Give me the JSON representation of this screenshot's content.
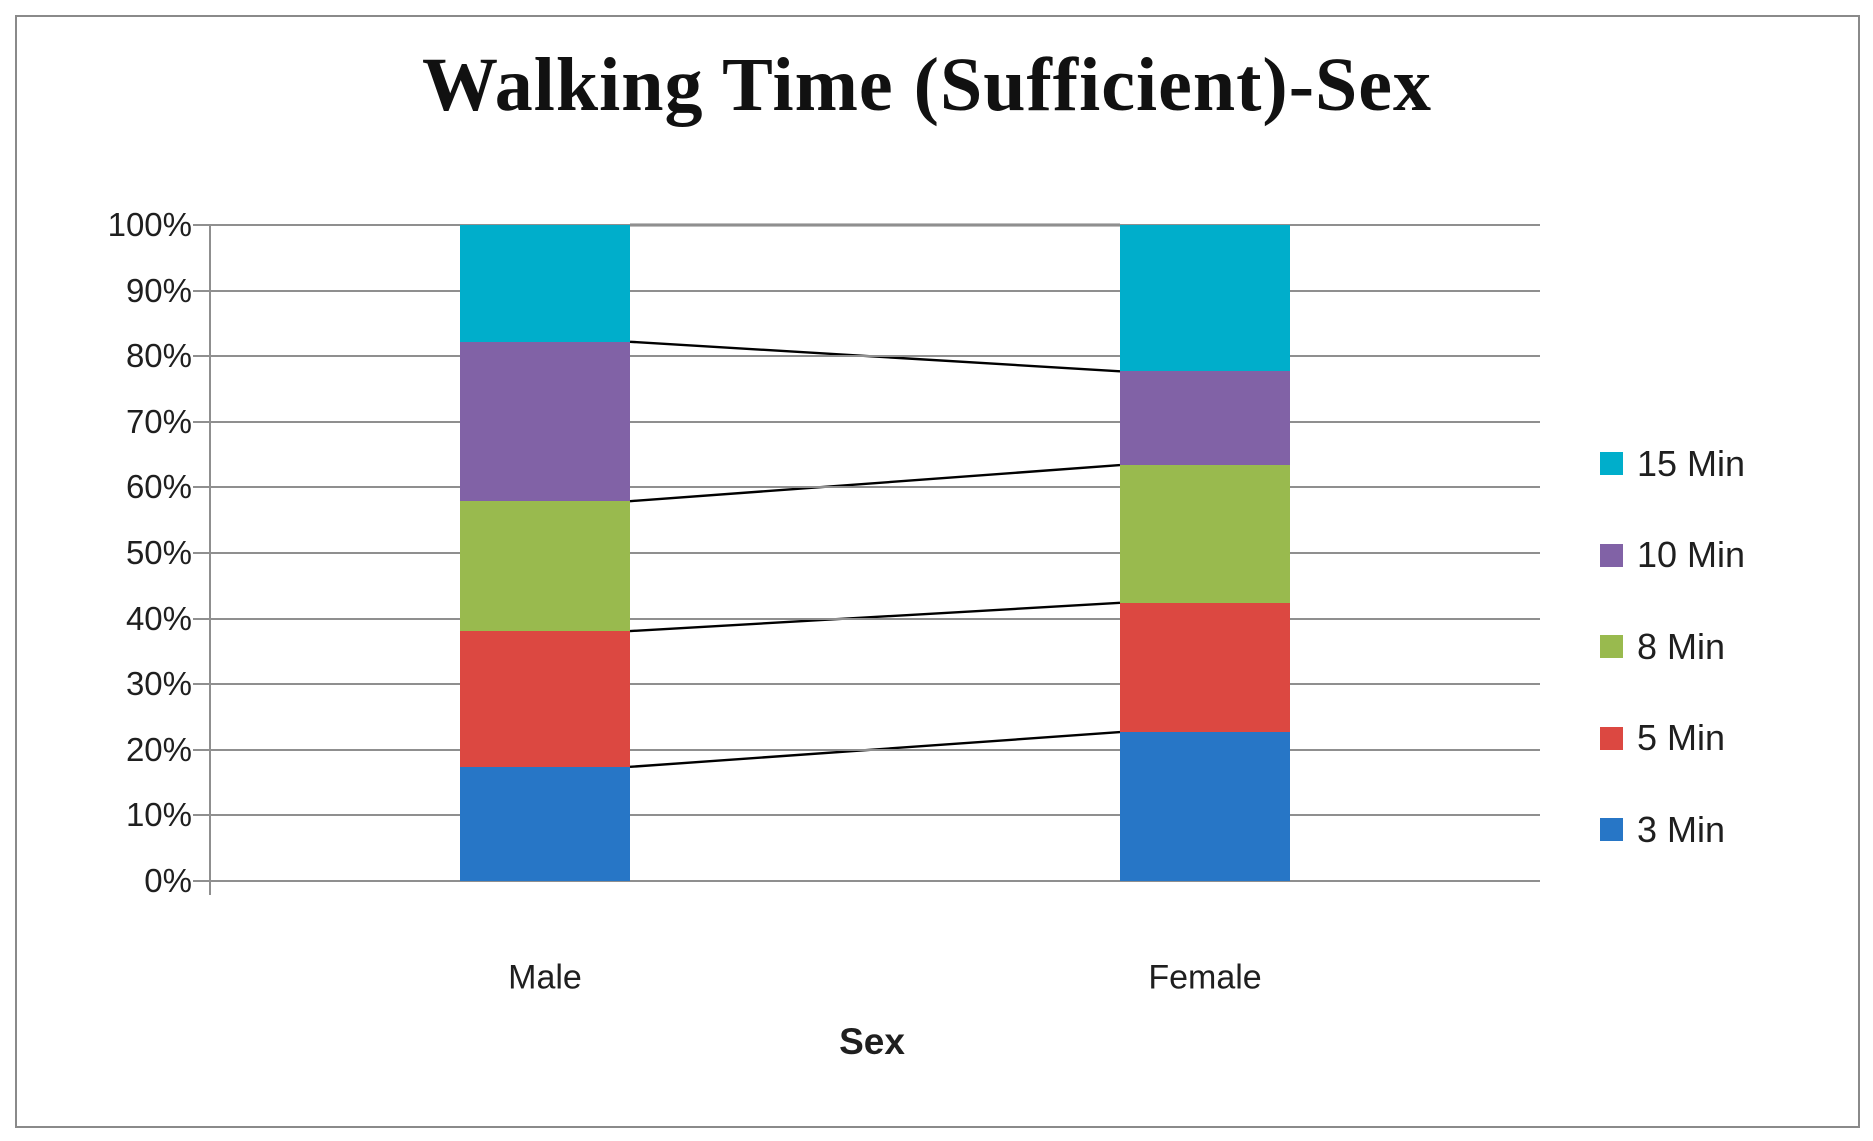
{
  "chart_data": {
    "type": "bar",
    "subtype": "stacked-100-percent",
    "title": "Walking Time (Sufficient)-Sex",
    "xlabel": "Sex",
    "ylabel": "",
    "ylim": [
      0,
      100
    ],
    "y_tick_labels": [
      "0%",
      "10%",
      "20%",
      "30%",
      "40%",
      "50%",
      "60%",
      "70%",
      "80%",
      "90%",
      "100%"
    ],
    "categories": [
      "Male",
      "Female"
    ],
    "series": [
      {
        "name": "3 Min",
        "color": "#2776c6",
        "values": [
          17.4,
          22.7
        ]
      },
      {
        "name": "5 Min",
        "color": "#dc4841",
        "values": [
          20.7,
          19.7
        ]
      },
      {
        "name": "8 Min",
        "color": "#99ba4e",
        "values": [
          19.8,
          21.0
        ]
      },
      {
        "name": "10 Min",
        "color": "#8162a6",
        "values": [
          24.3,
          14.3
        ]
      },
      {
        "name": "15 Min",
        "color": "#00aecb",
        "values": [
          17.8,
          22.3
        ]
      }
    ],
    "legend_order_top_to_bottom": [
      "15 Min",
      "10 Min",
      "8 Min",
      "5 Min",
      "3 Min"
    ],
    "legend_position": "right",
    "gridlines": true,
    "series_connector_lines": true,
    "grid_color": "#8f8f8f",
    "connector_line_color": "#000000"
  }
}
